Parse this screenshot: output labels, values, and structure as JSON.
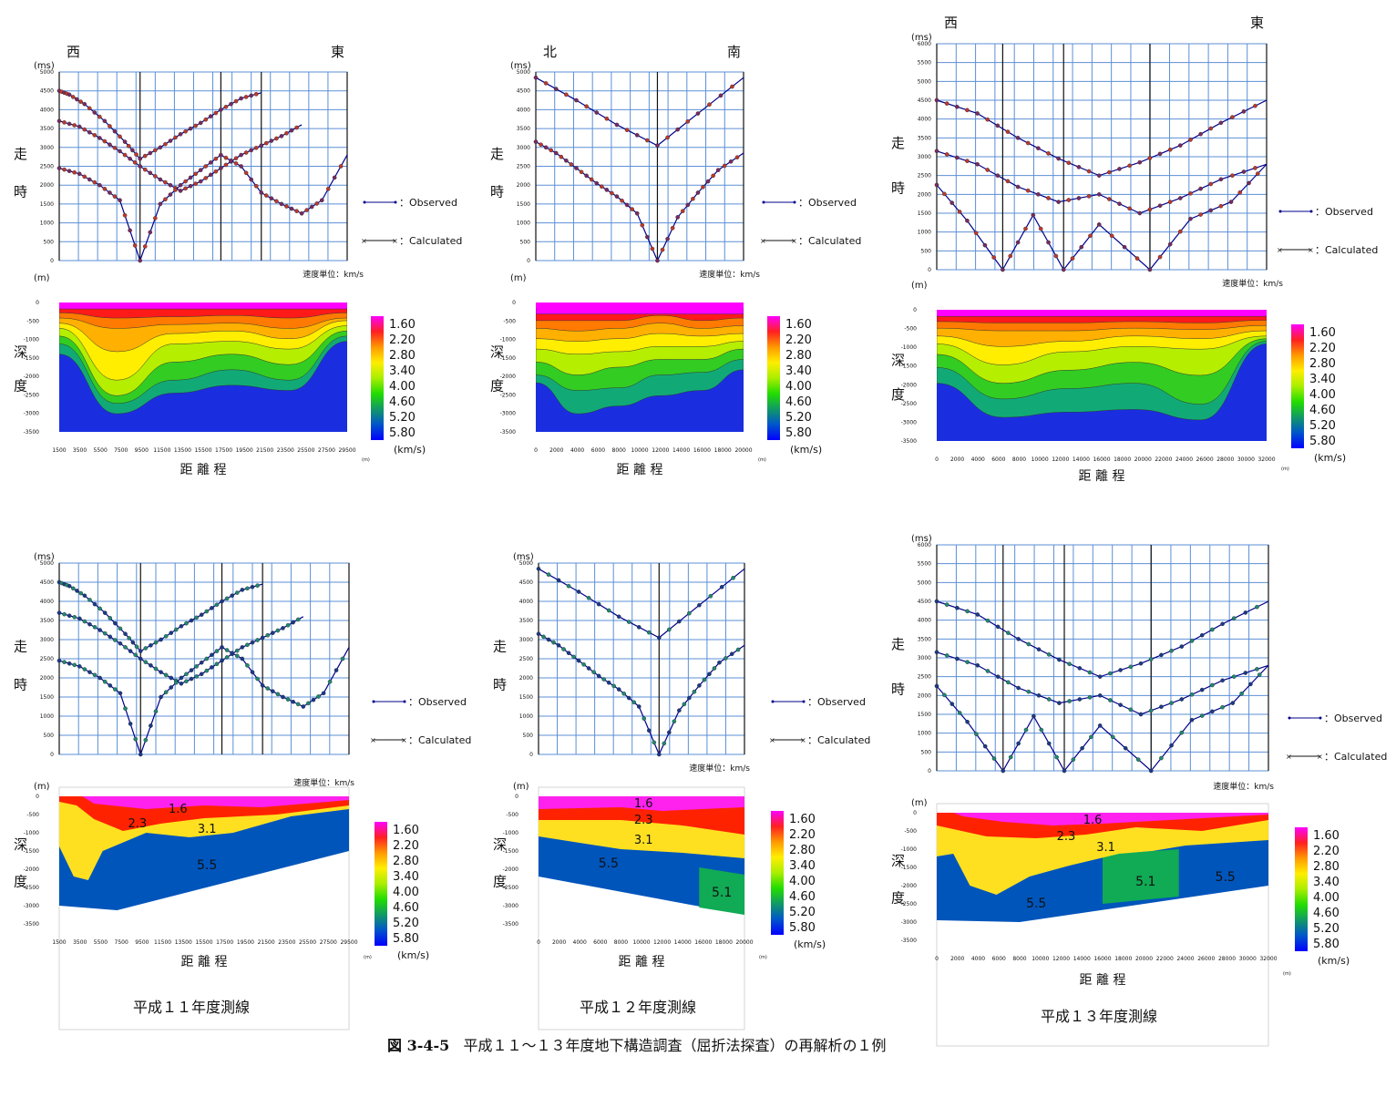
{
  "caption": {
    "fig_no": "図 3-4-5",
    "text": "平成１１～１３年度地下構造調査（屈折法探査）の再解析の１例"
  },
  "common": {
    "time_unit": "(ms)",
    "time_axis_char1": "走",
    "time_axis_char2": "時",
    "depth_unit": "(m)",
    "depth_axis_char1": "深",
    "depth_axis_char2": "度",
    "distance_label": "距 離 程",
    "distance_unit": "(m)",
    "velocity_unit_note": "速度単位：km/s",
    "velocity_scale_unit": "(km/s)",
    "legend_observed": "：Observed",
    "legend_calculated": "：Calculated",
    "colorbar_labels": [
      "1.60",
      "2.20",
      "2.80",
      "3.40",
      "4.00",
      "4.60",
      "5.20",
      "5.80"
    ],
    "colorbar_colors": [
      "#ff00ff",
      "#ff2020",
      "#ff9900",
      "#ffee00",
      "#aaee00",
      "#22dd00",
      "#119966",
      "#0055cc",
      "#0000ff"
    ],
    "velocity_value_colors": {
      "1.6": "#ff22ee",
      "2.3": "#ff2200",
      "3.1": "#ffe020",
      "5.1": "#11aa55",
      "5.5": "#0055bb"
    },
    "observed_color": "#00008b",
    "calculated_color": "#cc2222"
  },
  "years": [
    {
      "label": "平成１１年度測線",
      "direction_left": "西",
      "direction_right": "東",
      "time_ticks": [
        "0",
        "500",
        "1000",
        "1500",
        "2000",
        "2500",
        "3000",
        "3500",
        "4000",
        "4500",
        "5000"
      ],
      "depth_ticks": [
        "0",
        "-500",
        "-1000",
        "-1500",
        "-2000",
        "-2500",
        "-3000",
        "-3500"
      ],
      "distance_ticks": [
        "1500",
        "3500",
        "5500",
        "7500",
        "9500",
        "11500",
        "13500",
        "15500",
        "17500",
        "19500",
        "21500",
        "23500",
        "25500",
        "27500",
        "29500"
      ],
      "velocity_labels": [
        "1.6",
        "2.3",
        "3.1",
        "5.5"
      ]
    },
    {
      "label": "平成１２年度測線",
      "direction_left": "北",
      "direction_right": "南",
      "time_ticks": [
        "0",
        "500",
        "1000",
        "1500",
        "2000",
        "2500",
        "3000",
        "3500",
        "4000",
        "4500",
        "5000"
      ],
      "depth_ticks": [
        "0",
        "-500",
        "-1000",
        "-1500",
        "-2000",
        "-2500",
        "-3000",
        "-3500"
      ],
      "distance_ticks": [
        "0",
        "2000",
        "4000",
        "6000",
        "8000",
        "10000",
        "12000",
        "14000",
        "16000",
        "18000",
        "20000"
      ],
      "velocity_labels": [
        "1.6",
        "2.3",
        "3.1",
        "5.5",
        "5.1"
      ]
    },
    {
      "label": "平成１３年度測線",
      "direction_left": "西",
      "direction_right": "東",
      "time_ticks": [
        "0",
        "500",
        "1000",
        "1500",
        "2000",
        "2500",
        "3000",
        "3500",
        "4000",
        "4500",
        "5000",
        "5500",
        "6000"
      ],
      "depth_ticks": [
        "0",
        "-500",
        "-1000",
        "-1500",
        "-2000",
        "-2500",
        "-3000",
        "-3500"
      ],
      "distance_ticks": [
        "0",
        "2000",
        "4000",
        "6000",
        "8000",
        "10000",
        "12000",
        "14000",
        "16000",
        "18000",
        "20000",
        "22000",
        "24000",
        "26000",
        "28000",
        "30000",
        "32000"
      ],
      "velocity_labels": [
        "1.6",
        "2.3",
        "3.1",
        "5.1",
        "5.5",
        "5.5"
      ]
    }
  ],
  "chart_data": [
    {
      "type": "line",
      "panel": "H11 travel-time (top)",
      "ylim": [
        0,
        5000
      ],
      "xlim": [
        1500,
        30000
      ],
      "shots_x": [
        1500,
        9500,
        17500,
        21500,
        30000
      ],
      "series": [
        {
          "x": [
            1500,
            2500,
            4000,
            6000,
            8000,
            9500,
            11500,
            13500,
            15500,
            17500,
            19500,
            21500,
            23500,
            25500,
            27500,
            30000
          ],
          "values": [
            4500,
            4400,
            4150,
            3700,
            3150,
            2700,
            3000,
            3350,
            3650,
            4000,
            4300,
            4450,
            null,
            null,
            null,
            null
          ]
        },
        {
          "x": [
            1500,
            3500,
            5500,
            7500,
            9500,
            11500,
            13500,
            15500,
            17500,
            19500,
            21500,
            23500,
            25500,
            27500,
            30000
          ],
          "values": [
            3700,
            3550,
            3250,
            2900,
            2500,
            2150,
            1850,
            2100,
            2450,
            2800,
            3050,
            3300,
            3600,
            null,
            null
          ]
        },
        {
          "x": [
            1500,
            3500,
            5500,
            7500,
            9500,
            11500,
            13500,
            15500,
            17500,
            19500,
            21500,
            23500,
            25500,
            27500,
            30000
          ],
          "values": [
            2450,
            2300,
            2000,
            1600,
            0,
            1500,
            2000,
            2400,
            2800,
            2500,
            1800,
            1500,
            1250,
            1600,
            2800
          ]
        }
      ]
    },
    {
      "type": "line",
      "panel": "H12 travel-time (top)",
      "ylim": [
        0,
        5000
      ],
      "xlim": [
        0,
        20500
      ],
      "shots_x": [
        0,
        12000,
        20500
      ],
      "series": [
        {
          "x": [
            0,
            4000,
            8000,
            12000,
            16000,
            20500
          ],
          "values": [
            4850,
            4250,
            3600,
            3050,
            3900,
            4850
          ]
        },
        {
          "x": [
            0,
            2000,
            4000,
            6000,
            8000,
            10000,
            12000,
            14000,
            16000,
            18000,
            20500
          ],
          "values": [
            3150,
            2850,
            2450,
            2050,
            1700,
            1250,
            0,
            1150,
            1800,
            2400,
            2850
          ]
        }
      ]
    },
    {
      "type": "line",
      "panel": "H13 travel-time (top)",
      "ylim": [
        0,
        6000
      ],
      "xlim": [
        0,
        32500
      ],
      "shots_x": [
        0,
        6500,
        12500,
        21000,
        32500
      ],
      "series": [
        {
          "x": [
            0,
            4000,
            8000,
            12000,
            16000,
            20000,
            24000,
            28000,
            32500
          ],
          "values": [
            4500,
            4150,
            3500,
            2950,
            2500,
            2850,
            3300,
            3900,
            4500
          ]
        },
        {
          "x": [
            0,
            4000,
            8000,
            12000,
            16000,
            20000,
            24000,
            28000,
            32500
          ],
          "values": [
            3150,
            2800,
            2200,
            1800,
            2000,
            1500,
            1900,
            2400,
            2800
          ]
        },
        {
          "x": [
            0,
            3000,
            6500,
            9500,
            12500,
            16000,
            21000,
            25000,
            29000,
            32500
          ],
          "values": [
            2250,
            1300,
            0,
            1450,
            0,
            1200,
            0,
            1350,
            1800,
            2800
          ]
        }
      ]
    },
    {
      "type": "heatmap",
      "panel": "H11 velocity model (top)",
      "ylabel": "深度",
      "xlabel": "距 離 程",
      "value_unit": "km/s",
      "ylim": [
        -3500,
        0
      ]
    },
    {
      "type": "heatmap",
      "panel": "H12 velocity model (top)",
      "ylabel": "深度",
      "xlabel": "距 離 程",
      "value_unit": "km/s",
      "ylim": [
        -3500,
        0
      ]
    },
    {
      "type": "heatmap",
      "panel": "H13 velocity model (top)",
      "ylabel": "深度",
      "xlabel": "距 離 程",
      "value_unit": "km/s",
      "ylim": [
        -3500,
        0
      ]
    },
    {
      "type": "area",
      "panel": "H11 layered model (bottom)",
      "layers": [
        "1.6",
        "2.3",
        "3.1",
        "5.5"
      ],
      "ylim": [
        -3500,
        0
      ]
    },
    {
      "type": "area",
      "panel": "H12 layered model (bottom)",
      "layers": [
        "1.6",
        "2.3",
        "3.1",
        "5.5",
        "5.1"
      ],
      "ylim": [
        -3500,
        0
      ]
    },
    {
      "type": "area",
      "panel": "H13 layered model (bottom)",
      "layers": [
        "1.6",
        "2.3",
        "3.1",
        "5.5",
        "5.1",
        "5.5"
      ],
      "ylim": [
        -3500,
        0
      ]
    }
  ]
}
